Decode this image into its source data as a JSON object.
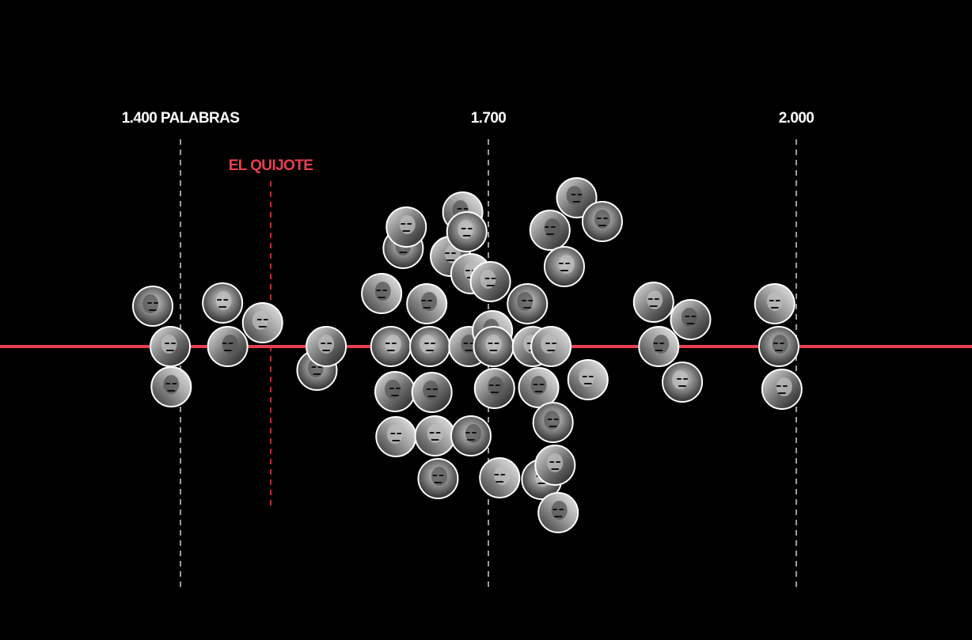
{
  "chart_data": {
    "type": "scatter",
    "title": "",
    "xlabel": "",
    "ylabel": "",
    "x_axis": {
      "ticks": [
        {
          "value": 1400,
          "label": "1.400 PALABRAS"
        },
        {
          "value": 1700,
          "label": "1.700"
        },
        {
          "value": 2000,
          "label": "2.000"
        }
      ],
      "range": [
        1235,
        2175
      ]
    },
    "reference": {
      "label": "EL QUIJOTE",
      "value": 1488
    },
    "grid": false,
    "marker": "circular-photo",
    "points": [
      {
        "x": 1373
      },
      {
        "x": 1390
      },
      {
        "x": 1391
      },
      {
        "x": 1441
      },
      {
        "x": 1446
      },
      {
        "x": 1480
      },
      {
        "x": 1533
      },
      {
        "x": 1542
      },
      {
        "x": 1596
      },
      {
        "x": 1605
      },
      {
        "x": 1609
      },
      {
        "x": 1610
      },
      {
        "x": 1617
      },
      {
        "x": 1620
      },
      {
        "x": 1640
      },
      {
        "x": 1643
      },
      {
        "x": 1645
      },
      {
        "x": 1648
      },
      {
        "x": 1651
      },
      {
        "x": 1663
      },
      {
        "x": 1675
      },
      {
        "x": 1679
      },
      {
        "x": 1681
      },
      {
        "x": 1683
      },
      {
        "x": 1683
      },
      {
        "x": 1702
      },
      {
        "x": 1704
      },
      {
        "x": 1705
      },
      {
        "x": 1706
      },
      {
        "x": 1711
      },
      {
        "x": 1738
      },
      {
        "x": 1743
      },
      {
        "x": 1749
      },
      {
        "x": 1752
      },
      {
        "x": 1760
      },
      {
        "x": 1761
      },
      {
        "x": 1763
      },
      {
        "x": 1765
      },
      {
        "x": 1768
      },
      {
        "x": 1774
      },
      {
        "x": 1786
      },
      {
        "x": 1797
      },
      {
        "x": 1811
      },
      {
        "x": 1861
      },
      {
        "x": 1866
      },
      {
        "x": 1889
      },
      {
        "x": 1897
      },
      {
        "x": 1979
      },
      {
        "x": 1983
      },
      {
        "x": 1986
      }
    ]
  },
  "colors": {
    "background": "#000000",
    "accent": "#e8404f",
    "axis_line": "#e8404f",
    "gridline": "#cfcfcf",
    "marker_border": "#ffffff",
    "label": "#ffffff"
  }
}
